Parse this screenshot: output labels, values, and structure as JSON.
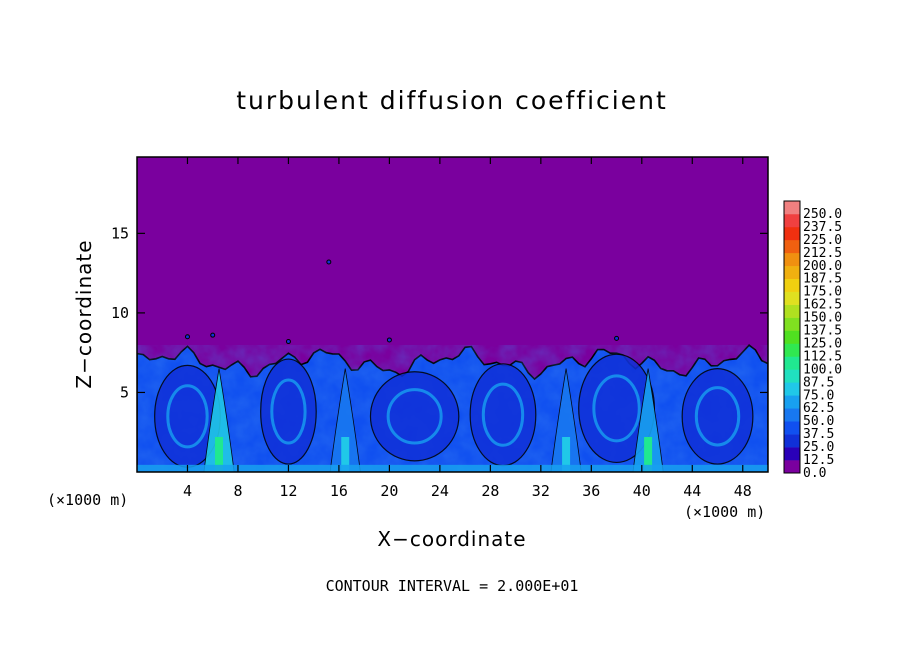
{
  "chart_data": {
    "type": "heatmap",
    "title": "turbulent diffusion coefficient",
    "xlabel": "X−coordinate",
    "ylabel": "Z−coordinate",
    "x_unit_label": "(×1000 m)",
    "x_unit_label_right": "(×1000 m)",
    "contour_note": "CONTOUR INTERVAL = 2.000E+01",
    "xlim": [
      0,
      50
    ],
    "ylim": [
      0,
      19.8
    ],
    "x_ticks": [
      4,
      8,
      12,
      16,
      20,
      24,
      28,
      32,
      36,
      40,
      44,
      48
    ],
    "y_ticks": [
      5,
      10,
      15
    ],
    "colorbar": {
      "levels": [
        "0.0",
        "12.5",
        "25.0",
        "37.5",
        "50.0",
        "62.5",
        "75.0",
        "87.5",
        "100.0",
        "112.5",
        "125.0",
        "137.5",
        "150.0",
        "162.5",
        "175.0",
        "187.5",
        "200.0",
        "212.5",
        "225.0",
        "237.5",
        "250.0"
      ],
      "colors": [
        "#7a009e",
        "#2a00b8",
        "#1030d8",
        "#1050f0",
        "#1878f0",
        "#18a0f0",
        "#20c8e8",
        "#20e0c0",
        "#20e890",
        "#30e850",
        "#50e020",
        "#80e020",
        "#b0e020",
        "#e0e020",
        "#f0d010",
        "#f0b010",
        "#f09010",
        "#f06010",
        "#f03010",
        "#f04040",
        "#f08080"
      ]
    },
    "field_summary": {
      "background_value": 0.0,
      "turbulent_layer_top_z": 7.5,
      "typical_layer_value": 37.5,
      "plume_peaks": [
        {
          "x": 6.5,
          "value": 110
        },
        {
          "x": 40.5,
          "value": 100
        },
        {
          "x": 16.5,
          "value": 80
        },
        {
          "x": 34.0,
          "value": 75
        }
      ]
    }
  }
}
